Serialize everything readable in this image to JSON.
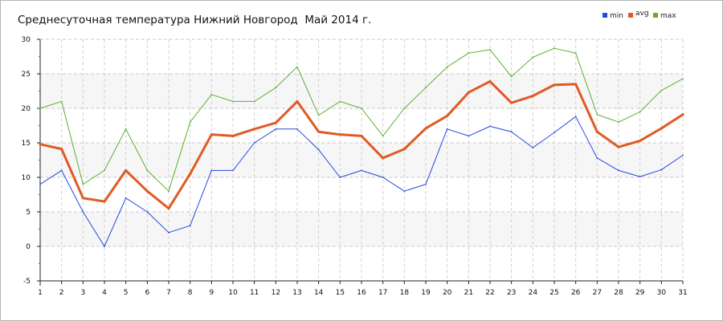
{
  "chart_data": {
    "type": "line",
    "title": "Среднесуточная температура Нижний Новгород  Май 2014 г.",
    "xlabel": "",
    "ylabel": "",
    "x": [
      1,
      2,
      3,
      4,
      5,
      6,
      7,
      8,
      9,
      10,
      11,
      12,
      13,
      14,
      15,
      16,
      17,
      18,
      19,
      20,
      21,
      22,
      23,
      24,
      25,
      26,
      27,
      28,
      29,
      30,
      31
    ],
    "xlim": [
      1,
      31
    ],
    "ylim": [
      -5,
      30
    ],
    "yticks": [
      -5,
      0,
      5,
      10,
      15,
      20,
      25,
      30
    ],
    "grid": true,
    "legend_position": "top-right",
    "series": [
      {
        "name": "min",
        "color": "#2448e0",
        "values": [
          9,
          11,
          5,
          0,
          7,
          5,
          2,
          3,
          11,
          11,
          15,
          17,
          17,
          14,
          10,
          11,
          10,
          8,
          9,
          17,
          16,
          17.4,
          16.6,
          14.3,
          16.5,
          18.8,
          12.8,
          11,
          10.1,
          11.1,
          13.2
        ]
      },
      {
        "name": "avg",
        "color": "#e05a24",
        "values": [
          14.8,
          14.1,
          7,
          6.5,
          11,
          8,
          5.5,
          10.5,
          16.2,
          16,
          17,
          17.9,
          21,
          16.6,
          16.2,
          16,
          12.8,
          14.1,
          17.1,
          18.9,
          22.3,
          23.9,
          20.8,
          21.8,
          23.4,
          23.5,
          16.6,
          14.4,
          15.3,
          17.1,
          19.1
        ]
      },
      {
        "name": "max",
        "color": "#5cb030",
        "values": [
          20,
          21,
          9,
          11,
          17,
          11,
          8,
          18,
          22,
          21,
          21,
          23,
          26,
          19,
          21,
          20,
          16,
          20,
          23,
          26,
          28,
          28.5,
          24.6,
          27.4,
          28.7,
          28,
          19.1,
          18,
          19.5,
          22.6,
          24.3
        ]
      }
    ]
  }
}
